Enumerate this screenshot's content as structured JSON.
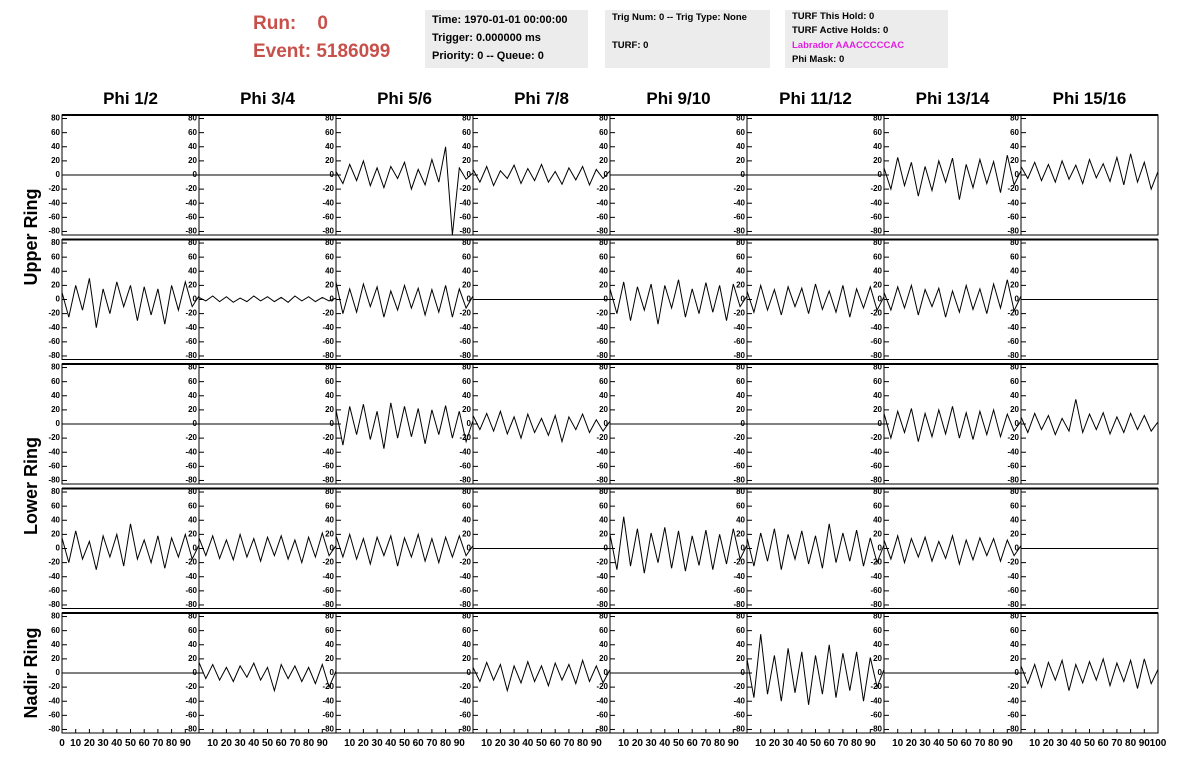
{
  "header": {
    "run": "Run:    0",
    "event": "Event: 5186099"
  },
  "info": [
    [
      "Time: 1970-01-01 00:00:00",
      "Trigger: 0.000000 ms",
      "Priority: 0 -- Queue: 0"
    ],
    [
      "Trig Num: 0 -- Trig Type: None",
      "TURF: 0"
    ],
    [
      "TURF This Hold: 0",
      "TURF Active Holds: 0",
      "Labrador AAACCCCCAC",
      "Phi Mask: 0"
    ]
  ],
  "columns": [
    "Phi 1/2",
    "Phi 3/4",
    "Phi 5/6",
    "Phi 7/8",
    "Phi 9/10",
    "Phi 11/12",
    "Phi 13/14",
    "Phi 15/16"
  ],
  "rings": [
    "Upper Ring",
    "Lower Ring",
    "Nadir Ring"
  ],
  "axes": {
    "x": [
      0,
      5,
      10,
      15,
      20,
      25,
      30,
      35,
      40,
      45,
      50,
      55,
      60,
      65,
      70,
      75,
      80,
      85,
      90,
      95,
      100
    ],
    "xlim": [
      0,
      100
    ],
    "ylim": [
      -85,
      85
    ],
    "yticks": [
      -80,
      -60,
      -40,
      -20,
      0,
      20,
      40,
      60,
      80
    ],
    "xticks": [
      0,
      10,
      20,
      30,
      40,
      50,
      60,
      70,
      80,
      90,
      100
    ]
  },
  "chart_data": [
    {
      "type": "line",
      "values": [
        0,
        0,
        0,
        0,
        0,
        0,
        0,
        0,
        0,
        0,
        0,
        0,
        0,
        0,
        0,
        0,
        0,
        0,
        0,
        0,
        0
      ]
    },
    {
      "type": "line",
      "values": [
        0,
        0,
        0,
        0,
        0,
        0,
        0,
        0,
        0,
        0,
        0,
        0,
        0,
        0,
        0,
        0,
        0,
        0,
        0,
        0,
        0
      ]
    },
    {
      "type": "line",
      "values": [
        5,
        -12,
        15,
        -8,
        20,
        -15,
        10,
        -18,
        12,
        -5,
        18,
        -20,
        8,
        -14,
        22,
        -10,
        40,
        -85,
        10,
        -6,
        3
      ]
    },
    {
      "type": "line",
      "values": [
        8,
        -10,
        12,
        -15,
        6,
        -5,
        14,
        -12,
        9,
        -8,
        15,
        -10,
        5,
        -13,
        10,
        -7,
        12,
        -14,
        8,
        -5,
        6
      ]
    },
    {
      "type": "line",
      "values": [
        0,
        0,
        0,
        0,
        0,
        0,
        0,
        0,
        0,
        0,
        0,
        0,
        0,
        0,
        0,
        0,
        0,
        0,
        0,
        0,
        0
      ]
    },
    {
      "type": "line",
      "values": [
        0,
        0,
        0,
        0,
        0,
        0,
        0,
        0,
        0,
        0,
        0,
        0,
        0,
        0,
        0,
        0,
        0,
        0,
        0,
        0,
        0
      ]
    },
    {
      "type": "line",
      "values": [
        10,
        -20,
        25,
        -15,
        18,
        -30,
        12,
        -22,
        20,
        -10,
        24,
        -35,
        15,
        -18,
        22,
        -12,
        19,
        -25,
        28,
        -14,
        6
      ]
    },
    {
      "type": "line",
      "values": [
        12,
        -5,
        18,
        -8,
        15,
        -10,
        20,
        -6,
        14,
        -12,
        22,
        -4,
        16,
        -9,
        25,
        -14,
        30,
        -10,
        18,
        -20,
        5
      ]
    },
    {
      "type": "line",
      "values": [
        10,
        -25,
        20,
        -15,
        30,
        -40,
        15,
        -20,
        25,
        -10,
        20,
        -30,
        18,
        -22,
        15,
        -35,
        20,
        -15,
        25,
        -10,
        5
      ]
    },
    {
      "type": "line",
      "values": [
        3,
        -2,
        5,
        -3,
        4,
        -4,
        2,
        -3,
        5,
        -2,
        4,
        -3,
        3,
        -4,
        5,
        -2,
        4,
        -3,
        3,
        -2,
        2
      ]
    },
    {
      "type": "line",
      "values": [
        25,
        -20,
        15,
        -18,
        22,
        -10,
        18,
        -25,
        12,
        -15,
        20,
        -12,
        16,
        -22,
        14,
        -18,
        20,
        -25,
        15,
        -12,
        5
      ]
    },
    {
      "type": "line",
      "values": [
        0,
        0,
        0,
        0,
        0,
        0,
        0,
        0,
        0,
        0,
        0,
        0,
        0,
        0,
        0,
        0,
        0,
        0,
        0,
        0,
        0
      ]
    },
    {
      "type": "line",
      "values": [
        15,
        -20,
        25,
        -30,
        18,
        -15,
        22,
        -35,
        20,
        -12,
        28,
        -25,
        15,
        -20,
        24,
        -18,
        20,
        -30,
        22,
        -10,
        5
      ]
    },
    {
      "type": "line",
      "values": [
        12,
        -18,
        20,
        -15,
        14,
        -22,
        18,
        -10,
        16,
        -20,
        22,
        -14,
        12,
        -18,
        20,
        -25,
        15,
        -12,
        18,
        -15,
        4
      ]
    },
    {
      "type": "line",
      "values": [
        10,
        -15,
        18,
        -12,
        20,
        -22,
        14,
        -10,
        16,
        -25,
        12,
        -18,
        20,
        -14,
        15,
        -20,
        22,
        -12,
        28,
        -16,
        5
      ]
    },
    {
      "type": "line",
      "values": [
        0,
        0,
        0,
        0,
        0,
        0,
        0,
        0,
        0,
        0,
        0,
        0,
        0,
        0,
        0,
        0,
        0,
        0,
        0,
        0,
        0
      ]
    },
    {
      "type": "line",
      "values": [
        0,
        0,
        0,
        0,
        0,
        0,
        0,
        0,
        0,
        0,
        0,
        0,
        0,
        0,
        0,
        0,
        0,
        0,
        0,
        0,
        0
      ]
    },
    {
      "type": "line",
      "values": [
        0,
        0,
        0,
        0,
        0,
        0,
        0,
        0,
        0,
        0,
        0,
        0,
        0,
        0,
        0,
        0,
        0,
        0,
        0,
        0,
        0
      ]
    },
    {
      "type": "line",
      "values": [
        20,
        -30,
        25,
        -15,
        28,
        -22,
        18,
        -35,
        30,
        -20,
        25,
        -18,
        22,
        -28,
        20,
        -15,
        26,
        -20,
        18,
        -25,
        5
      ]
    },
    {
      "type": "line",
      "values": [
        12,
        -8,
        15,
        -10,
        18,
        -14,
        10,
        -20,
        14,
        -12,
        8,
        -16,
        12,
        -25,
        10,
        -8,
        14,
        -12,
        6,
        -10,
        4
      ]
    },
    {
      "type": "line",
      "values": [
        0,
        0,
        0,
        0,
        0,
        0,
        0,
        0,
        0,
        0,
        0,
        0,
        0,
        0,
        0,
        0,
        0,
        0,
        0,
        0,
        0
      ]
    },
    {
      "type": "line",
      "values": [
        0,
        0,
        0,
        0,
        0,
        0,
        0,
        0,
        0,
        0,
        0,
        0,
        0,
        0,
        0,
        0,
        0,
        0,
        0,
        0,
        0
      ]
    },
    {
      "type": "line",
      "values": [
        15,
        -20,
        18,
        -12,
        22,
        -25,
        15,
        -18,
        20,
        -14,
        25,
        -20,
        16,
        -22,
        18,
        -15,
        20,
        -18,
        14,
        -10,
        4
      ]
    },
    {
      "type": "line",
      "values": [
        10,
        -12,
        15,
        -8,
        12,
        -15,
        8,
        -10,
        35,
        -12,
        14,
        -8,
        16,
        -14,
        10,
        -12,
        15,
        -8,
        12,
        -10,
        3
      ]
    },
    {
      "type": "line",
      "values": [
        15,
        -20,
        25,
        -15,
        10,
        -30,
        18,
        -12,
        20,
        -25,
        35,
        -15,
        12,
        -20,
        18,
        -28,
        15,
        -12,
        20,
        -15,
        5
      ]
    },
    {
      "type": "line",
      "values": [
        15,
        -10,
        18,
        -14,
        12,
        -16,
        20,
        -12,
        14,
        -18,
        16,
        -10,
        18,
        -15,
        12,
        -20,
        16,
        -12,
        22,
        -10,
        4
      ]
    },
    {
      "type": "line",
      "values": [
        18,
        -12,
        20,
        -15,
        14,
        -22,
        16,
        -10,
        18,
        -25,
        15,
        -12,
        20,
        -18,
        14,
        -20,
        16,
        -12,
        18,
        -10,
        4
      ]
    },
    {
      "type": "line",
      "values": [
        0,
        0,
        0,
        0,
        0,
        0,
        0,
        0,
        0,
        0,
        0,
        0,
        0,
        0,
        0,
        0,
        0,
        0,
        0,
        0,
        0
      ]
    },
    {
      "type": "line",
      "values": [
        20,
        -30,
        45,
        -25,
        28,
        -35,
        22,
        -20,
        30,
        -28,
        25,
        -32,
        18,
        -24,
        26,
        -30,
        20,
        -22,
        28,
        -15,
        5
      ]
    },
    {
      "type": "line",
      "values": [
        15,
        -25,
        22,
        -18,
        28,
        -30,
        20,
        -15,
        25,
        -22,
        18,
        -28,
        35,
        -20,
        22,
        -18,
        26,
        -25,
        15,
        -20,
        5
      ]
    },
    {
      "type": "line",
      "values": [
        12,
        -15,
        18,
        -20,
        14,
        -12,
        16,
        -18,
        10,
        -14,
        18,
        -22,
        12,
        -16,
        15,
        -10,
        14,
        -18,
        12,
        -10,
        4
      ]
    },
    {
      "type": "line",
      "values": [
        0,
        0,
        0,
        0,
        0,
        0,
        0,
        0,
        0,
        0,
        0,
        0,
        0,
        0,
        0,
        0,
        0,
        0,
        0,
        0,
        0
      ]
    },
    {
      "type": "line",
      "values": [
        0,
        0,
        0,
        0,
        0,
        0,
        0,
        0,
        0,
        0,
        0,
        0,
        0,
        0,
        0,
        0,
        0,
        0,
        0,
        0,
        0
      ]
    },
    {
      "type": "line",
      "values": [
        15,
        -8,
        12,
        -10,
        8,
        -12,
        10,
        -6,
        14,
        -10,
        8,
        -25,
        12,
        -8,
        10,
        -12,
        8,
        -15,
        12,
        -20,
        3
      ]
    },
    {
      "type": "line",
      "values": [
        0,
        0,
        0,
        0,
        0,
        0,
        0,
        0,
        0,
        0,
        0,
        0,
        0,
        0,
        0,
        0,
        0,
        0,
        0,
        0,
        0
      ]
    },
    {
      "type": "line",
      "values": [
        8,
        -12,
        15,
        -10,
        12,
        -25,
        10,
        -14,
        16,
        -12,
        10,
        -18,
        14,
        -10,
        12,
        -15,
        18,
        -12,
        10,
        -14,
        5
      ]
    },
    {
      "type": "line",
      "values": [
        0,
        0,
        0,
        0,
        0,
        0,
        0,
        0,
        0,
        0,
        0,
        0,
        0,
        0,
        0,
        0,
        0,
        0,
        0,
        0,
        0
      ]
    },
    {
      "type": "line",
      "values": [
        20,
        -35,
        55,
        -30,
        25,
        -40,
        35,
        -28,
        30,
        -45,
        25,
        -30,
        40,
        -35,
        28,
        -25,
        30,
        -40,
        22,
        -20,
        5
      ]
    },
    {
      "type": "line",
      "values": [
        0,
        0,
        0,
        0,
        0,
        0,
        0,
        0,
        0,
        0,
        0,
        0,
        0,
        0,
        0,
        0,
        0,
        0,
        0,
        0,
        0
      ]
    },
    {
      "type": "line",
      "values": [
        10,
        -15,
        12,
        -20,
        15,
        -10,
        18,
        -25,
        12,
        -14,
        16,
        -10,
        20,
        -18,
        14,
        -12,
        18,
        -22,
        20,
        -15,
        5
      ]
    }
  ]
}
